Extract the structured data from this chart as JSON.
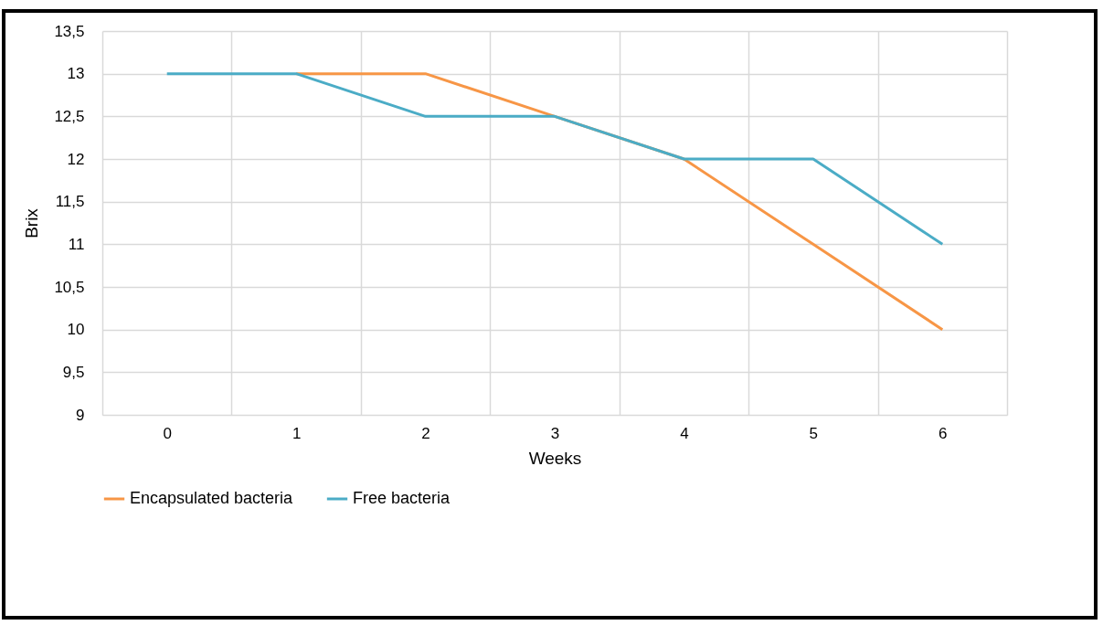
{
  "chart_data": {
    "type": "line",
    "xlabel": "Weeks",
    "ylabel": "Brix",
    "categories": [
      "0",
      "1",
      "2",
      "3",
      "4",
      "5",
      "6"
    ],
    "series": [
      {
        "name": "Encapsulated bacteria",
        "color": "#f79646",
        "values": [
          null,
          13,
          13,
          12.5,
          12,
          11,
          10
        ]
      },
      {
        "name": "Free bacteria",
        "color": "#4bacc6",
        "values": [
          13,
          13,
          12.5,
          12.5,
          12,
          12,
          11
        ]
      }
    ],
    "ylim": [
      9,
      13.5
    ],
    "yticks": [
      9,
      {
        "value": 9.5,
        "label": "9,5"
      },
      10,
      {
        "value": 10.5,
        "label": "10,5"
      },
      11,
      {
        "value": 11.5,
        "label": "11,5"
      },
      12,
      {
        "value": 12.5,
        "label": "12,5"
      },
      13,
      {
        "value": 13.5,
        "label": "13,5"
      }
    ],
    "grid": true,
    "legend": "bottom",
    "marker": "none",
    "line_style": "solid"
  }
}
